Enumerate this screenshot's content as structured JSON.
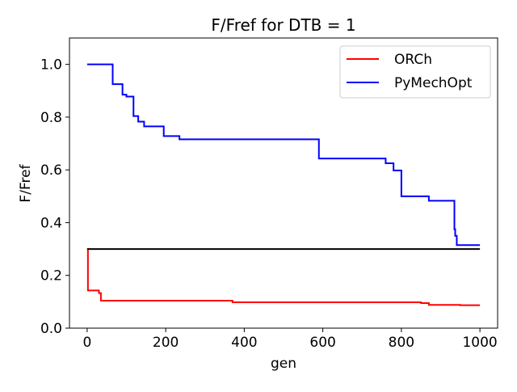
{
  "chart_data": {
    "type": "line",
    "title": "F/Fref for DTB = 1",
    "xlabel": "gen",
    "ylabel": "F/Fref",
    "xlim": [
      -45,
      1045
    ],
    "ylim": [
      0.0,
      1.1
    ],
    "xticks": [
      0,
      200,
      400,
      600,
      800,
      1000
    ],
    "yticks": [
      0.0,
      0.2,
      0.4,
      0.6,
      0.8,
      1.0
    ],
    "xtick_labels": [
      "0",
      "200",
      "400",
      "600",
      "800",
      "1000"
    ],
    "ytick_labels": [
      "0.0",
      "0.2",
      "0.4",
      "0.6",
      "0.8",
      "1.0"
    ],
    "grid": false,
    "legend_position": "top-right",
    "series": [
      {
        "name": "ORCh",
        "color": "#ff0000",
        "step": true,
        "x": [
          0,
          2,
          30,
          35,
          370,
          850,
          870,
          950,
          1000
        ],
        "y": [
          0.3,
          0.143,
          0.133,
          0.104,
          0.098,
          0.095,
          0.088,
          0.087,
          0.087
        ]
      },
      {
        "name": "PyMechOpt",
        "color": "#0000ff",
        "step": true,
        "x": [
          0,
          65,
          90,
          100,
          118,
          130,
          145,
          195,
          235,
          590,
          760,
          780,
          800,
          870,
          935,
          937,
          941,
          1000
        ],
        "y": [
          1.0,
          0.925,
          0.885,
          0.878,
          0.804,
          0.783,
          0.765,
          0.728,
          0.716,
          0.643,
          0.625,
          0.598,
          0.5,
          0.483,
          0.375,
          0.35,
          0.315,
          0.315
        ]
      },
      {
        "color": "#000000",
        "step": false,
        "x": [
          0,
          1000
        ],
        "y": [
          0.3,
          0.3
        ]
      }
    ]
  }
}
